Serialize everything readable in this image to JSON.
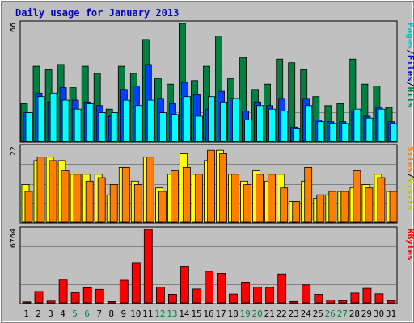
{
  "chart_data": {
    "type": "bar",
    "title": "Daily usage for January 2013",
    "categories": [
      "1",
      "2",
      "3",
      "4",
      "5",
      "6",
      "7",
      "8",
      "9",
      "10",
      "11",
      "12",
      "13",
      "14",
      "15",
      "16",
      "17",
      "18",
      "19",
      "20",
      "21",
      "22",
      "23",
      "24",
      "25",
      "26",
      "27",
      "28",
      "29",
      "30",
      "31"
    ],
    "weekend_days": [
      "5",
      "6",
      "12",
      "13",
      "19",
      "20",
      "26",
      "27"
    ],
    "colors": {
      "background": "#c0c0c0",
      "panel": "#c0c0c0",
      "grid": "#808080",
      "title": "#0000c0",
      "hits": "#008040",
      "files": "#0040ff",
      "pages": "#00ffff",
      "visits": "#ffff00",
      "sites": "#ff8000",
      "kbytes": "#ff0000",
      "weekday_label": "#000000",
      "weekend_label": "#008040"
    },
    "panels": [
      {
        "axis_max": "66",
        "ylim": [
          0,
          66
        ],
        "legend": [
          {
            "text": "Pages",
            "color": "#00c0c0"
          },
          {
            "text": "/",
            "color": "#000000"
          },
          {
            "text": "Files",
            "color": "#0000ff"
          },
          {
            "text": "/",
            "color": "#000000"
          },
          {
            "text": "Hits",
            "color": "#008040"
          }
        ],
        "series": [
          {
            "name": "Hits",
            "color": "#008040",
            "values": [
              21,
              42,
              40,
              43,
              30,
              42,
              38,
              18,
              42,
              38,
              57,
              35,
              32,
              66,
              34,
              42,
              59,
              35,
              47,
              29,
              32,
              46,
              44,
              40,
              25,
              20,
              21,
              46,
              32,
              31,
              19
            ]
          },
          {
            "name": "Files",
            "color": "#0040ff",
            "values": [
              16,
              27,
              22,
              30,
              23,
              22,
              20,
              14,
              29,
              31,
              43,
              24,
              21,
              33,
              26,
              18,
              28,
              24,
              17,
              22,
              20,
              24,
              8,
              24,
              12,
              11,
              11,
              17,
              14,
              19,
              11
            ]
          },
          {
            "name": "Pages",
            "color": "#00ffff",
            "values": [
              16,
              25,
              27,
              23,
              18,
              21,
              16,
              16,
              23,
              20,
              23,
              16,
              15,
              25,
              14,
              25,
              22,
              24,
              12,
              20,
              18,
              17,
              7,
              20,
              11,
              10,
              10,
              18,
              13,
              18,
              10
            ]
          }
        ]
      },
      {
        "axis_max": "22",
        "ylim": [
          0,
          22
        ],
        "legend": [
          {
            "text": "Sites",
            "color": "#ff8000"
          },
          {
            "text": "/",
            "color": "#000000"
          },
          {
            "text": "Visits",
            "color": "#c0c000"
          }
        ],
        "series": [
          {
            "name": "Visits",
            "color": "#ffff00",
            "values": [
              11,
              18,
              19,
              18,
              14,
              14,
              14,
              8,
              16,
              12,
              19,
              10,
              14,
              20,
              14,
              18,
              21,
              14,
              12,
              15,
              12,
              14,
              6,
              12,
              7,
              8,
              9,
              10,
              11,
              14,
              9
            ]
          },
          {
            "name": "Sites",
            "color": "#ff8000",
            "values": [
              9,
              19,
              18,
              15,
              14,
              12,
              13,
              11,
              16,
              11,
              19,
              9,
              15,
              16,
              14,
              21,
              20,
              14,
              11,
              14,
              14,
              10,
              6,
              16,
              8,
              9,
              9,
              15,
              10,
              13,
              9
            ]
          }
        ]
      },
      {
        "axis_max": "6764",
        "ylim": [
          0,
          6764
        ],
        "legend": [
          {
            "text": "KBytes",
            "color": "#ff0000"
          }
        ],
        "series": [
          {
            "name": "KBytes",
            "color": "#ff0000",
            "values": [
              90,
              1050,
              160,
              2100,
              930,
              1380,
              1240,
              120,
              2080,
              3650,
              6764,
              1450,
              790,
              3310,
              1270,
              2910,
              2720,
              810,
              1900,
              1440,
              1420,
              2660,
              130,
              1650,
              790,
              270,
              200,
              900,
              1330,
              830,
              190
            ]
          }
        ]
      }
    ]
  }
}
